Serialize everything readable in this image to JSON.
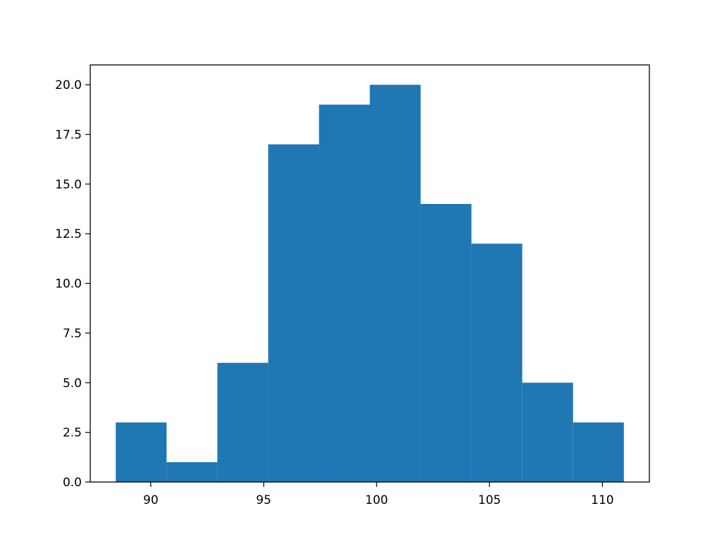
{
  "chart_data": {
    "type": "bar",
    "variant": "histogram",
    "title": "",
    "xlabel": "",
    "ylabel": "",
    "bins": [
      {
        "x0": 88.45,
        "x1": 90.7,
        "count": 3
      },
      {
        "x0": 90.7,
        "x1": 92.95,
        "count": 1
      },
      {
        "x0": 92.95,
        "x1": 95.2,
        "count": 6
      },
      {
        "x0": 95.2,
        "x1": 97.45,
        "count": 17
      },
      {
        "x0": 97.45,
        "x1": 99.7,
        "count": 19
      },
      {
        "x0": 99.7,
        "x1": 101.95,
        "count": 20
      },
      {
        "x0": 101.95,
        "x1": 104.2,
        "count": 14
      },
      {
        "x0": 104.2,
        "x1": 106.45,
        "count": 12
      },
      {
        "x0": 106.45,
        "x1": 108.7,
        "count": 5
      },
      {
        "x0": 108.7,
        "x1": 110.95,
        "count": 3
      }
    ],
    "xlim": [
      87.32,
      112.08
    ],
    "ylim": [
      0,
      21
    ],
    "xticks": [
      90,
      95,
      100,
      105,
      110
    ],
    "xtick_labels": [
      "90",
      "95",
      "100",
      "105",
      "110"
    ],
    "yticks": [
      0,
      2.5,
      5,
      7.5,
      10,
      12.5,
      15,
      17.5,
      20
    ],
    "ytick_labels": [
      "0.0",
      "2.5",
      "5.0",
      "7.5",
      "10.0",
      "12.5",
      "15.0",
      "17.5",
      "20.0"
    ],
    "grid": false,
    "legend": "none",
    "color": "#1f77b4"
  }
}
